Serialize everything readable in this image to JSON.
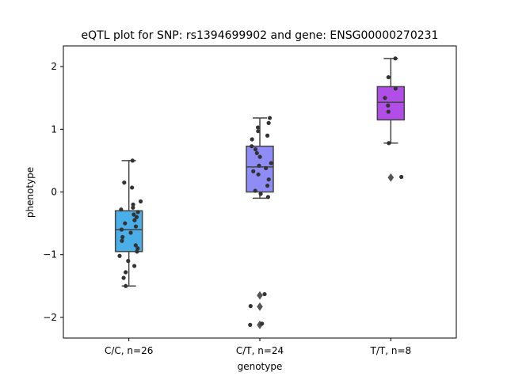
{
  "chart_data": {
    "type": "box",
    "title": "eQTL plot for SNP: rs1394699902 and gene: ENSG00000270231",
    "xlabel": "genotype",
    "ylabel": "phenotype",
    "ylim": [
      -2.33,
      2.33
    ],
    "yticks": [
      -2,
      -1,
      0,
      1,
      2
    ],
    "ytick_labels": [
      "−2",
      "−1",
      "0",
      "1",
      "2"
    ],
    "grid": false,
    "legend": "none",
    "groups": [
      {
        "label": "C/C, n=26",
        "color": "#4aaee8",
        "box": {
          "q1": -0.95,
          "median": -0.6,
          "q3": -0.3,
          "whisker_low": -1.5,
          "whisker_high": 0.5
        },
        "outliers": [],
        "points": [
          0.5,
          0.15,
          0.07,
          -0.15,
          -0.2,
          -0.25,
          -0.28,
          -0.32,
          -0.36,
          -0.4,
          -0.45,
          -0.5,
          -0.55,
          -0.6,
          -0.65,
          -0.72,
          -0.78,
          -0.85,
          -0.9,
          -0.95,
          -1.02,
          -1.1,
          -1.18,
          -1.28,
          -1.37,
          -1.5
        ]
      },
      {
        "label": "C/T, n=24",
        "color": "#8f8cf5",
        "box": {
          "q1": 0.0,
          "median": 0.4,
          "q3": 0.73,
          "whisker_low": -0.1,
          "whisker_high": 1.18
        },
        "outliers": [
          -1.65,
          -1.83,
          -2.12
        ],
        "points": [
          1.18,
          1.1,
          1.03,
          0.97,
          0.9,
          0.84,
          0.73,
          0.68,
          0.62,
          0.56,
          0.46,
          0.42,
          0.38,
          0.33,
          0.28,
          0.2,
          0.1,
          0.02,
          -0.03,
          -0.08,
          -1.63,
          -1.82,
          -2.1,
          -2.12
        ]
      },
      {
        "label": "T/T, n=8",
        "color": "#b14ee8",
        "box": {
          "q1": 1.15,
          "median": 1.43,
          "q3": 1.68,
          "whisker_low": 0.78,
          "whisker_high": 2.13
        },
        "outliers": [
          0.23
        ],
        "points": [
          2.13,
          1.83,
          1.65,
          1.5,
          1.38,
          1.28,
          0.78,
          0.24
        ]
      }
    ]
  }
}
